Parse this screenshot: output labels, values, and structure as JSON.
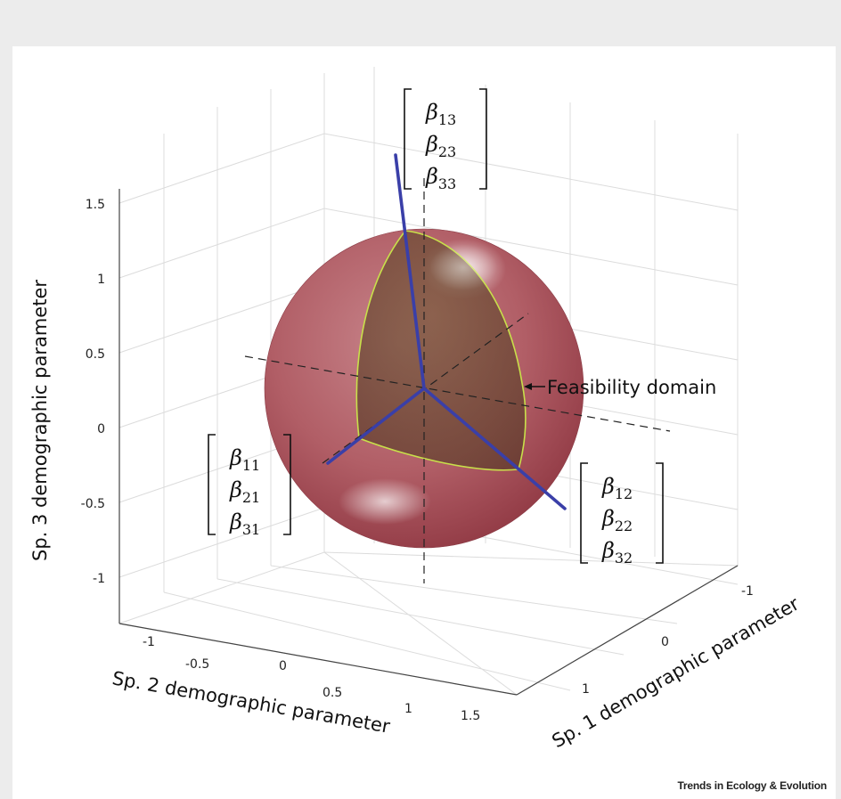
{
  "chart_data": {
    "type": "3d-surface",
    "zlabel": "Sp. 3 demographic parameter",
    "xlabel": "Sp. 2 demographic parameter",
    "ylabel": "Sp. 1 demographic parameter",
    "z_ticks": [
      "1.5",
      "1",
      "0.5",
      "0",
      "-0.5",
      "-1"
    ],
    "x_ticks": [
      "-1",
      "-0.5",
      "0",
      "0.5",
      "1",
      "1.5"
    ],
    "y_ticks": [
      "-1",
      "0",
      "1"
    ],
    "z_tick_values": [
      1.5,
      1,
      0.5,
      0,
      -0.5,
      -1
    ],
    "x_tick_values": [
      -1,
      -0.5,
      0,
      0.5,
      1,
      1.5
    ],
    "y_tick_values": [
      -1,
      0,
      1
    ],
    "grid": true,
    "sphere": {
      "radius": 1,
      "center": [
        0,
        0,
        0
      ],
      "color": "#a8464f"
    },
    "feasibility_domain": {
      "label": "Feasibility domain",
      "outline_color": "#c8e04a"
    },
    "vectors": [
      {
        "name": "column 1",
        "entries": [
          "β11",
          "β21",
          "β31"
        ],
        "color": "#3a3fa8"
      },
      {
        "name": "column 2",
        "entries": [
          "β12",
          "β22",
          "β32"
        ],
        "color": "#3a3fa8"
      },
      {
        "name": "column 3",
        "entries": [
          "β13",
          "β23",
          "β33"
        ],
        "color": "#3a3fa8"
      }
    ]
  },
  "credit": "Trends in Ecology & Evolution"
}
